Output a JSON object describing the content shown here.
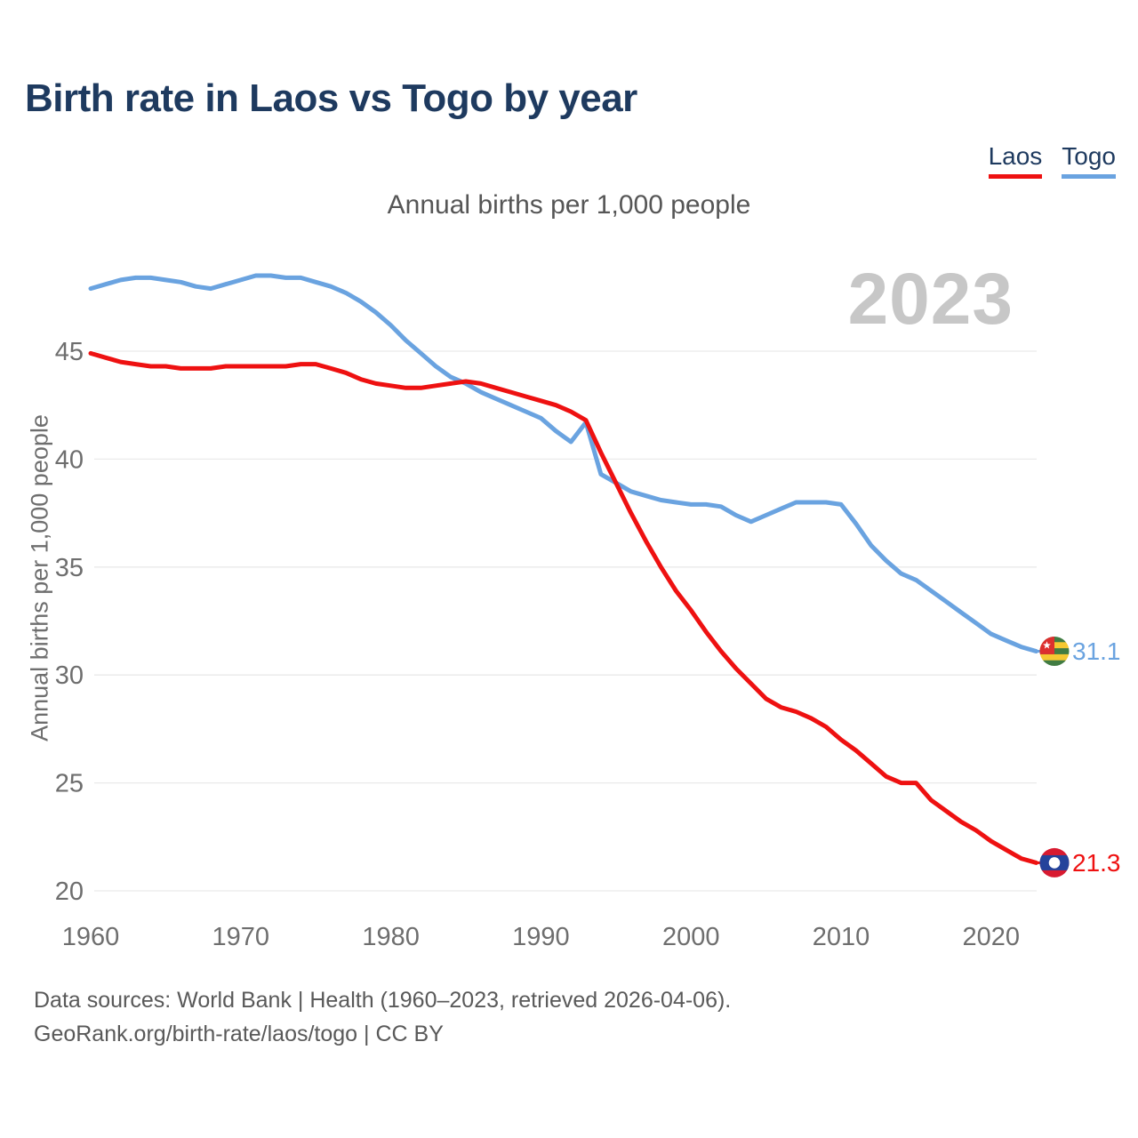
{
  "header": {
    "title": "Birth rate in Laos vs Togo by year",
    "subtitle": "Annual births per 1,000 people",
    "watermark": "2023"
  },
  "legend": {
    "items": [
      {
        "label": "Laos",
        "color": "#ee1111"
      },
      {
        "label": "Togo",
        "color": "#6aa3e0"
      }
    ]
  },
  "footer": {
    "line1": "Data sources: World Bank | Health (1960–2023, retrieved 2026-04-06).",
    "line2": "GeoRank.org/birth-rate/laos/togo | CC BY"
  },
  "chart_data": {
    "type": "line",
    "title": "Birth rate in Laos vs Togo by year",
    "ylabel": "Annual births per 1,000 people",
    "xlabel": "",
    "grid": "horizontal",
    "legend_position": "top-right",
    "xlim": [
      1960,
      2023
    ],
    "ylim": [
      20,
      49.5
    ],
    "xticks": [
      1960,
      1970,
      1980,
      1990,
      2000,
      2010,
      2020
    ],
    "yticks": [
      20,
      25,
      30,
      35,
      40,
      45
    ],
    "x": [
      1960,
      1961,
      1962,
      1963,
      1964,
      1965,
      1966,
      1967,
      1968,
      1969,
      1970,
      1971,
      1972,
      1973,
      1974,
      1975,
      1976,
      1977,
      1978,
      1979,
      1980,
      1981,
      1982,
      1983,
      1984,
      1985,
      1986,
      1987,
      1988,
      1989,
      1990,
      1991,
      1992,
      1993,
      1994,
      1995,
      1996,
      1997,
      1998,
      1999,
      2000,
      2001,
      2002,
      2003,
      2004,
      2005,
      2006,
      2007,
      2008,
      2009,
      2010,
      2011,
      2012,
      2013,
      2014,
      2015,
      2016,
      2017,
      2018,
      2019,
      2020,
      2021,
      2022,
      2023
    ],
    "series": [
      {
        "name": "Laos",
        "color": "#ee1111",
        "flag": "laos",
        "end_label": "21.3",
        "end_value": 21.3,
        "values": [
          44.9,
          44.7,
          44.5,
          44.4,
          44.3,
          44.3,
          44.2,
          44.2,
          44.2,
          44.3,
          44.3,
          44.3,
          44.3,
          44.3,
          44.4,
          44.4,
          44.2,
          44.0,
          43.7,
          43.5,
          43.4,
          43.3,
          43.3,
          43.4,
          43.5,
          43.6,
          43.5,
          43.3,
          43.1,
          42.9,
          42.7,
          42.5,
          42.2,
          41.8,
          40.3,
          38.9,
          37.5,
          36.2,
          35.0,
          33.9,
          33.0,
          32.0,
          31.1,
          30.3,
          29.6,
          28.9,
          28.5,
          28.3,
          28.0,
          27.6,
          27.0,
          26.5,
          25.9,
          25.3,
          25.0,
          25.0,
          24.2,
          23.7,
          23.2,
          22.8,
          22.3,
          21.9,
          21.5,
          21.3
        ]
      },
      {
        "name": "Togo",
        "color": "#6aa3e0",
        "flag": "togo",
        "end_label": "31.1",
        "end_value": 31.1,
        "values": [
          47.9,
          48.1,
          48.3,
          48.4,
          48.4,
          48.3,
          48.2,
          48.0,
          47.9,
          48.1,
          48.3,
          48.5,
          48.5,
          48.4,
          48.4,
          48.2,
          48.0,
          47.7,
          47.3,
          46.8,
          46.2,
          45.5,
          44.9,
          44.3,
          43.8,
          43.5,
          43.1,
          42.8,
          42.5,
          42.2,
          41.9,
          41.3,
          40.8,
          41.7,
          39.3,
          38.9,
          38.5,
          38.3,
          38.1,
          38.0,
          37.9,
          37.9,
          37.8,
          37.4,
          37.1,
          37.4,
          37.7,
          38.0,
          38.0,
          38.0,
          37.9,
          37.0,
          36.0,
          35.3,
          34.7,
          34.4,
          33.9,
          33.4,
          32.9,
          32.4,
          31.9,
          31.6,
          31.3,
          31.1
        ]
      }
    ]
  }
}
